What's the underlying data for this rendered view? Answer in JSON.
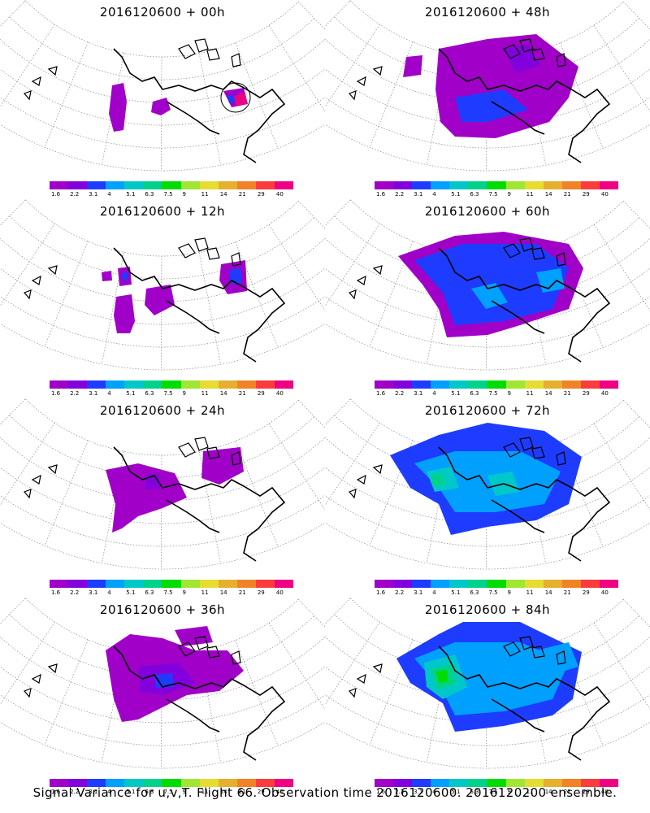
{
  "panels": [
    {
      "title": "2016120600 + 00h",
      "lead": "00h"
    },
    {
      "title": "2016120600 + 48h",
      "lead": "48h"
    },
    {
      "title": "2016120600 + 12h",
      "lead": "12h"
    },
    {
      "title": "2016120600 + 60h",
      "lead": "60h"
    },
    {
      "title": "2016120600 + 24h",
      "lead": "24h"
    },
    {
      "title": "2016120600 + 72h",
      "lead": "72h"
    },
    {
      "title": "2016120600 + 36h",
      "lead": "36h"
    },
    {
      "title": "2016120600 + 84h",
      "lead": "84h"
    }
  ],
  "colorbar": {
    "colors": [
      "#a000c8",
      "#8200dc",
      "#1e3cff",
      "#00a0ff",
      "#00c8c8",
      "#00d28c",
      "#00dc00",
      "#a0e632",
      "#e6dc32",
      "#e6af2d",
      "#f08228",
      "#fa3c3c",
      "#f00082"
    ],
    "labels": [
      "1.6",
      "2.2",
      "3.1",
      "4",
      "5.1",
      "6.3",
      "7.5",
      "9",
      "11",
      "14",
      "21",
      "29",
      "40"
    ]
  },
  "caption": "Signal Variance for u,v,T. Flight 66. Observation time 2016120600. 2016120200 ensemble."
}
